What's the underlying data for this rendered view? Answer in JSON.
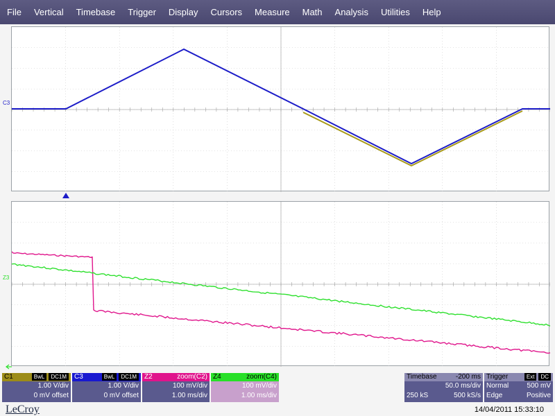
{
  "menu": [
    "File",
    "Vertical",
    "Timebase",
    "Trigger",
    "Display",
    "Cursors",
    "Measure",
    "Math",
    "Analysis",
    "Utilities",
    "Help"
  ],
  "colors": {
    "c1": "#a89a1a",
    "c3": "#1c1cc8",
    "z2": "#e0168c",
    "z4": "#2ee02e",
    "menu_bg": "#4f4d77",
    "grid": "#c8c8c8"
  },
  "icons": {
    "trigger_marker": "triangle-up-icon",
    "ground_marker": "arrow-left-icon"
  },
  "grid1": {
    "label": "C3"
  },
  "grid2": {
    "label": "Z3"
  },
  "descriptors": {
    "c1": {
      "name": "C1",
      "tag1": "BwL",
      "tag2": "DC1M",
      "scale": "1.00 V/div",
      "offset": "0 mV offset"
    },
    "c3": {
      "name": "C3",
      "tag1": "BwL",
      "tag2": "DC1M",
      "scale": "1.00 V/div",
      "offset": "0 mV offset"
    },
    "z2": {
      "name": "Z2",
      "source": "zoom(C2)",
      "scale": "100 mV/div",
      "time": "1.00 ms/div"
    },
    "z4": {
      "name": "Z4",
      "source": "zoom(C4)",
      "scale": "100 mV/div",
      "time": "1.00 ms/div"
    }
  },
  "timebase": {
    "label": "Timebase",
    "delay": "-200 ms",
    "per_div": "50.0 ms/div",
    "samples": "250 kS",
    "rate": "500 kS/s"
  },
  "trigger": {
    "label": "Trigger",
    "tag1": "Ext",
    "tag2": "DC",
    "mode": "Normal",
    "level": "500 mV",
    "type": "Edge",
    "slope": "Positive"
  },
  "brand": "LeCroy",
  "timestamp": "14/04/2011 15:33:10"
}
